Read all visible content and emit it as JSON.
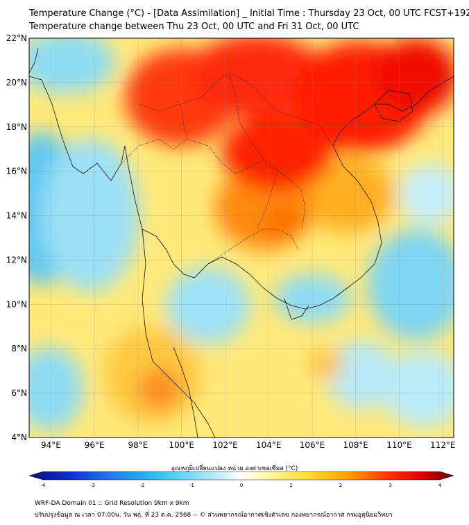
{
  "header": {
    "title_line1": "Temperature Change (°C) - [Data Assimilation] _ Initial Time : Thursday 23 Oct, 00 UTC FCST+192",
    "title_line2": "Temperature change between Thu 23 Oct, 00 UTC and Fri 31 Oct, 00 UTC"
  },
  "map": {
    "lat_range": [
      4,
      22
    ],
    "lon_range": [
      93,
      112.5
    ],
    "lat_ticks": [
      "22°N",
      "20°N",
      "18°N",
      "16°N",
      "14°N",
      "12°N",
      "10°N",
      "8°N",
      "6°N",
      "4°N"
    ],
    "lat_tick_values": [
      22,
      20,
      18,
      16,
      14,
      12,
      10,
      8,
      6,
      4
    ],
    "lon_ticks": [
      "94°E",
      "96°E",
      "98°E",
      "100°E",
      "102°E",
      "104°E",
      "106°E",
      "108°E",
      "110°E",
      "112°E"
    ],
    "lon_tick_values": [
      94,
      96,
      98,
      100,
      102,
      104,
      106,
      108,
      110,
      112
    ],
    "anomalies": [
      {
        "region": "north-thailand-laos",
        "lon": 99.8,
        "lat": 18.8,
        "value": 3.0
      },
      {
        "region": "northeast-thailand",
        "lon": 103.8,
        "lat": 16.2,
        "value": 3.2
      },
      {
        "region": "north-vietnam",
        "lon": 106.5,
        "lat": 20.5,
        "value": 3.3
      },
      {
        "region": "hainan",
        "lon": 110.0,
        "lat": 19.2,
        "value": 3.4
      },
      {
        "region": "cambodia-north",
        "lon": 104.5,
        "lat": 13.5,
        "value": 2.4
      },
      {
        "region": "west-myanmar",
        "lon": 95.5,
        "lat": 20.5,
        "value": -0.8
      },
      {
        "region": "andaman-sea",
        "lon": 96.5,
        "lat": 11.5,
        "value": -1.0
      },
      {
        "region": "bay-of-bengal-west",
        "lon": 93.2,
        "lat": 15.0,
        "value": -1.6
      },
      {
        "region": "gulf-of-thailand",
        "lon": 101.5,
        "lat": 10.5,
        "value": -0.8
      },
      {
        "region": "south-vietnam-coast",
        "lon": 105.8,
        "lat": 9.8,
        "value": -1.0
      },
      {
        "region": "south-china-sea-east",
        "lon": 111.5,
        "lat": 10.5,
        "value": -1.1
      },
      {
        "region": "malay-peninsula-west",
        "lon": 99.0,
        "lat": 6.5,
        "value": 2.0
      },
      {
        "region": "south-china-sea-central",
        "lon": 107.0,
        "lat": 7.0,
        "value": 1.3
      }
    ]
  },
  "colorbar": {
    "label": "อุณหภูมิเปลี่ยนแปลง หน่วย องศาเซลเซียส (°C)",
    "min": -4,
    "max": 4,
    "ticks": [
      "-4",
      "-3",
      "-2",
      "-1",
      "0",
      "1",
      "2",
      "3",
      "4"
    ],
    "tick_values": [
      -4,
      -3,
      -2,
      -1,
      0,
      1,
      2,
      3,
      4
    ],
    "stops": [
      {
        "v": -4,
        "c": "#0a0a80"
      },
      {
        "v": -3.2,
        "c": "#1030d0"
      },
      {
        "v": -2.4,
        "c": "#2080f0"
      },
      {
        "v": -1.6,
        "c": "#30c0f0"
      },
      {
        "v": -0.8,
        "c": "#90e0f5"
      },
      {
        "v": 0,
        "c": "#ffffff"
      },
      {
        "v": 0.5,
        "c": "#fff6a0"
      },
      {
        "v": 1.2,
        "c": "#ffe040"
      },
      {
        "v": 2.0,
        "c": "#ffa000"
      },
      {
        "v": 2.8,
        "c": "#ff3000"
      },
      {
        "v": 3.4,
        "c": "#e00000"
      },
      {
        "v": 4,
        "c": "#600000"
      }
    ]
  },
  "footer": {
    "line1": "WRF-DA Domain 01 :: Grid Resolution 9km x 9km",
    "line2": "ปรับปรุงข้อมูล ณ เวลา 07:00น. วัน พฤ. ที่ 23 ต.ค. 2568 -- © ส่วนพยากรณ์อากาศเชิงตัวเลข กองพยากรณ์อากาศ กรมอุตุนิยมวิทยา"
  }
}
